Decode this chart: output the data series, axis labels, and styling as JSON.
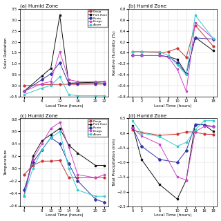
{
  "title_a": "(a) Humid Zone",
  "title_b": "(b) Humid Zone",
  "title_c": "(c) Humid Zone",
  "title_d": "(d) Humid Zone",
  "ylabel_a": "Solar Radiation",
  "ylabel_b": "Relative Humidity (%)",
  "ylabel_c": "Temperature",
  "ylabel_d": "Total Precipitation (mm)",
  "xlabel": "Local Time (hours)",
  "legend_labels": [
    "Danja",
    "Port Hare",
    "Runin",
    "Enugu",
    "Akure"
  ],
  "colors": [
    "#cc3333",
    "#111111",
    "#3333aa",
    "#cc44cc",
    "#33cccc"
  ],
  "a_x": [
    4,
    8,
    10,
    12,
    14,
    16,
    20,
    22
  ],
  "a_danja": [
    0.0,
    0.06,
    0.06,
    0.07,
    0.07,
    0.07,
    0.08,
    0.08
  ],
  "a_porthare": [
    -0.25,
    0.45,
    0.8,
    3.2,
    0.12,
    0.14,
    0.16,
    0.18
  ],
  "a_runin": [
    -0.25,
    0.28,
    0.55,
    1.05,
    0.1,
    0.1,
    0.1,
    0.1
  ],
  "a_enugu": [
    -0.25,
    0.1,
    0.2,
    1.55,
    0.28,
    0.2,
    0.2,
    0.2
  ],
  "a_akure": [
    -0.4,
    -0.1,
    0.02,
    0.42,
    -0.4,
    -0.45,
    -0.45,
    -0.45
  ],
  "b_x": [
    0,
    2,
    6,
    8,
    10,
    12,
    14,
    18
  ],
  "b_danja": [
    0.02,
    0.02,
    0.0,
    0.02,
    0.08,
    -0.08,
    0.5,
    0.12
  ],
  "b_porthare": [
    -0.05,
    -0.05,
    -0.05,
    -0.07,
    -0.12,
    -0.38,
    0.28,
    0.04
  ],
  "b_runin": [
    -0.05,
    -0.05,
    -0.05,
    -0.07,
    -0.18,
    -0.38,
    0.27,
    0.25
  ],
  "b_enugu": [
    -0.05,
    -0.05,
    -0.05,
    -0.08,
    -0.3,
    -0.7,
    0.55,
    0.26
  ],
  "b_akure": [
    0.02,
    0.02,
    0.02,
    -0.05,
    -0.22,
    -0.4,
    0.68,
    0.26
  ],
  "c_x": [
    4,
    6,
    8,
    10,
    12,
    14,
    16,
    20,
    22
  ],
  "c_danja": [
    -0.1,
    0.05,
    0.12,
    0.12,
    0.13,
    -0.15,
    -0.15,
    -0.15,
    -0.15
  ],
  "c_porthare": [
    -0.45,
    0.2,
    0.45,
    0.55,
    0.65,
    0.38,
    0.25,
    0.05,
    0.05
  ],
  "c_runin": [
    -0.35,
    0.1,
    0.3,
    0.5,
    0.4,
    0.08,
    -0.2,
    -0.5,
    -0.55
  ],
  "c_enugu": [
    -0.45,
    0.15,
    0.4,
    0.65,
    0.75,
    0.35,
    -0.1,
    -0.15,
    -0.1
  ],
  "c_akure": [
    -0.45,
    0.0,
    0.3,
    0.5,
    0.6,
    0.0,
    -0.35,
    -0.45,
    -0.45
  ],
  "d_x": [
    0,
    2,
    6,
    10,
    12,
    14,
    16,
    18
  ],
  "d_danja": [
    0.1,
    0.02,
    -0.08,
    -0.04,
    0.04,
    0.03,
    -0.04,
    -0.05
  ],
  "d_porthare": [
    0.25,
    -0.9,
    -1.75,
    -2.25,
    -1.6,
    0.3,
    0.28,
    0.05
  ],
  "d_runin": [
    0.18,
    -0.45,
    -0.9,
    -1.0,
    -0.6,
    0.28,
    0.28,
    0.22
  ],
  "d_enugu": [
    0.18,
    -0.1,
    -0.38,
    -1.5,
    -1.6,
    0.05,
    0.22,
    0.22
  ],
  "d_akure": [
    0.42,
    0.0,
    -0.12,
    -0.45,
    -0.32,
    0.1,
    0.42,
    0.42
  ],
  "a_ylim": [
    -0.5,
    3.5
  ],
  "b_ylim": [
    -0.8,
    0.8
  ],
  "d_ylim": [
    -2.5,
    0.5
  ]
}
